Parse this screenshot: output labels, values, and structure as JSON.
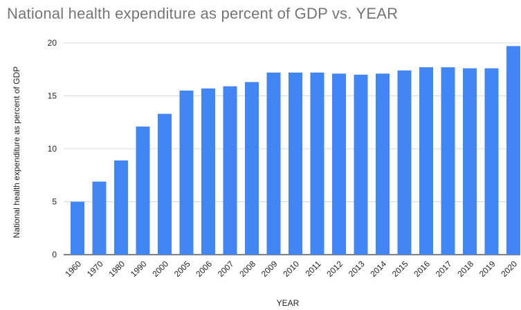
{
  "chart_data": {
    "type": "bar",
    "title": "National health expenditure as percent of GDP vs. YEAR",
    "xlabel": "YEAR",
    "ylabel": "National health expenditure as percent of GDP",
    "categories": [
      "1960",
      "1970",
      "1980",
      "1990",
      "2000",
      "2005",
      "2006",
      "2007",
      "2008",
      "2009",
      "2010",
      "2011",
      "2012",
      "2013",
      "2014",
      "2015",
      "2016",
      "2017",
      "2018",
      "2019",
      "2020"
    ],
    "values": [
      5.0,
      6.9,
      8.9,
      12.1,
      13.3,
      15.5,
      15.7,
      15.9,
      16.3,
      17.2,
      17.2,
      17.2,
      17.1,
      17.0,
      17.1,
      17.4,
      17.7,
      17.7,
      17.6,
      17.6,
      19.7
    ],
    "ylim": [
      0,
      20
    ],
    "yticks": [
      "0",
      "5",
      "10",
      "15",
      "20"
    ],
    "grid": true,
    "bar_color": "#4285f4",
    "grid_color": "#d9d9d9"
  }
}
